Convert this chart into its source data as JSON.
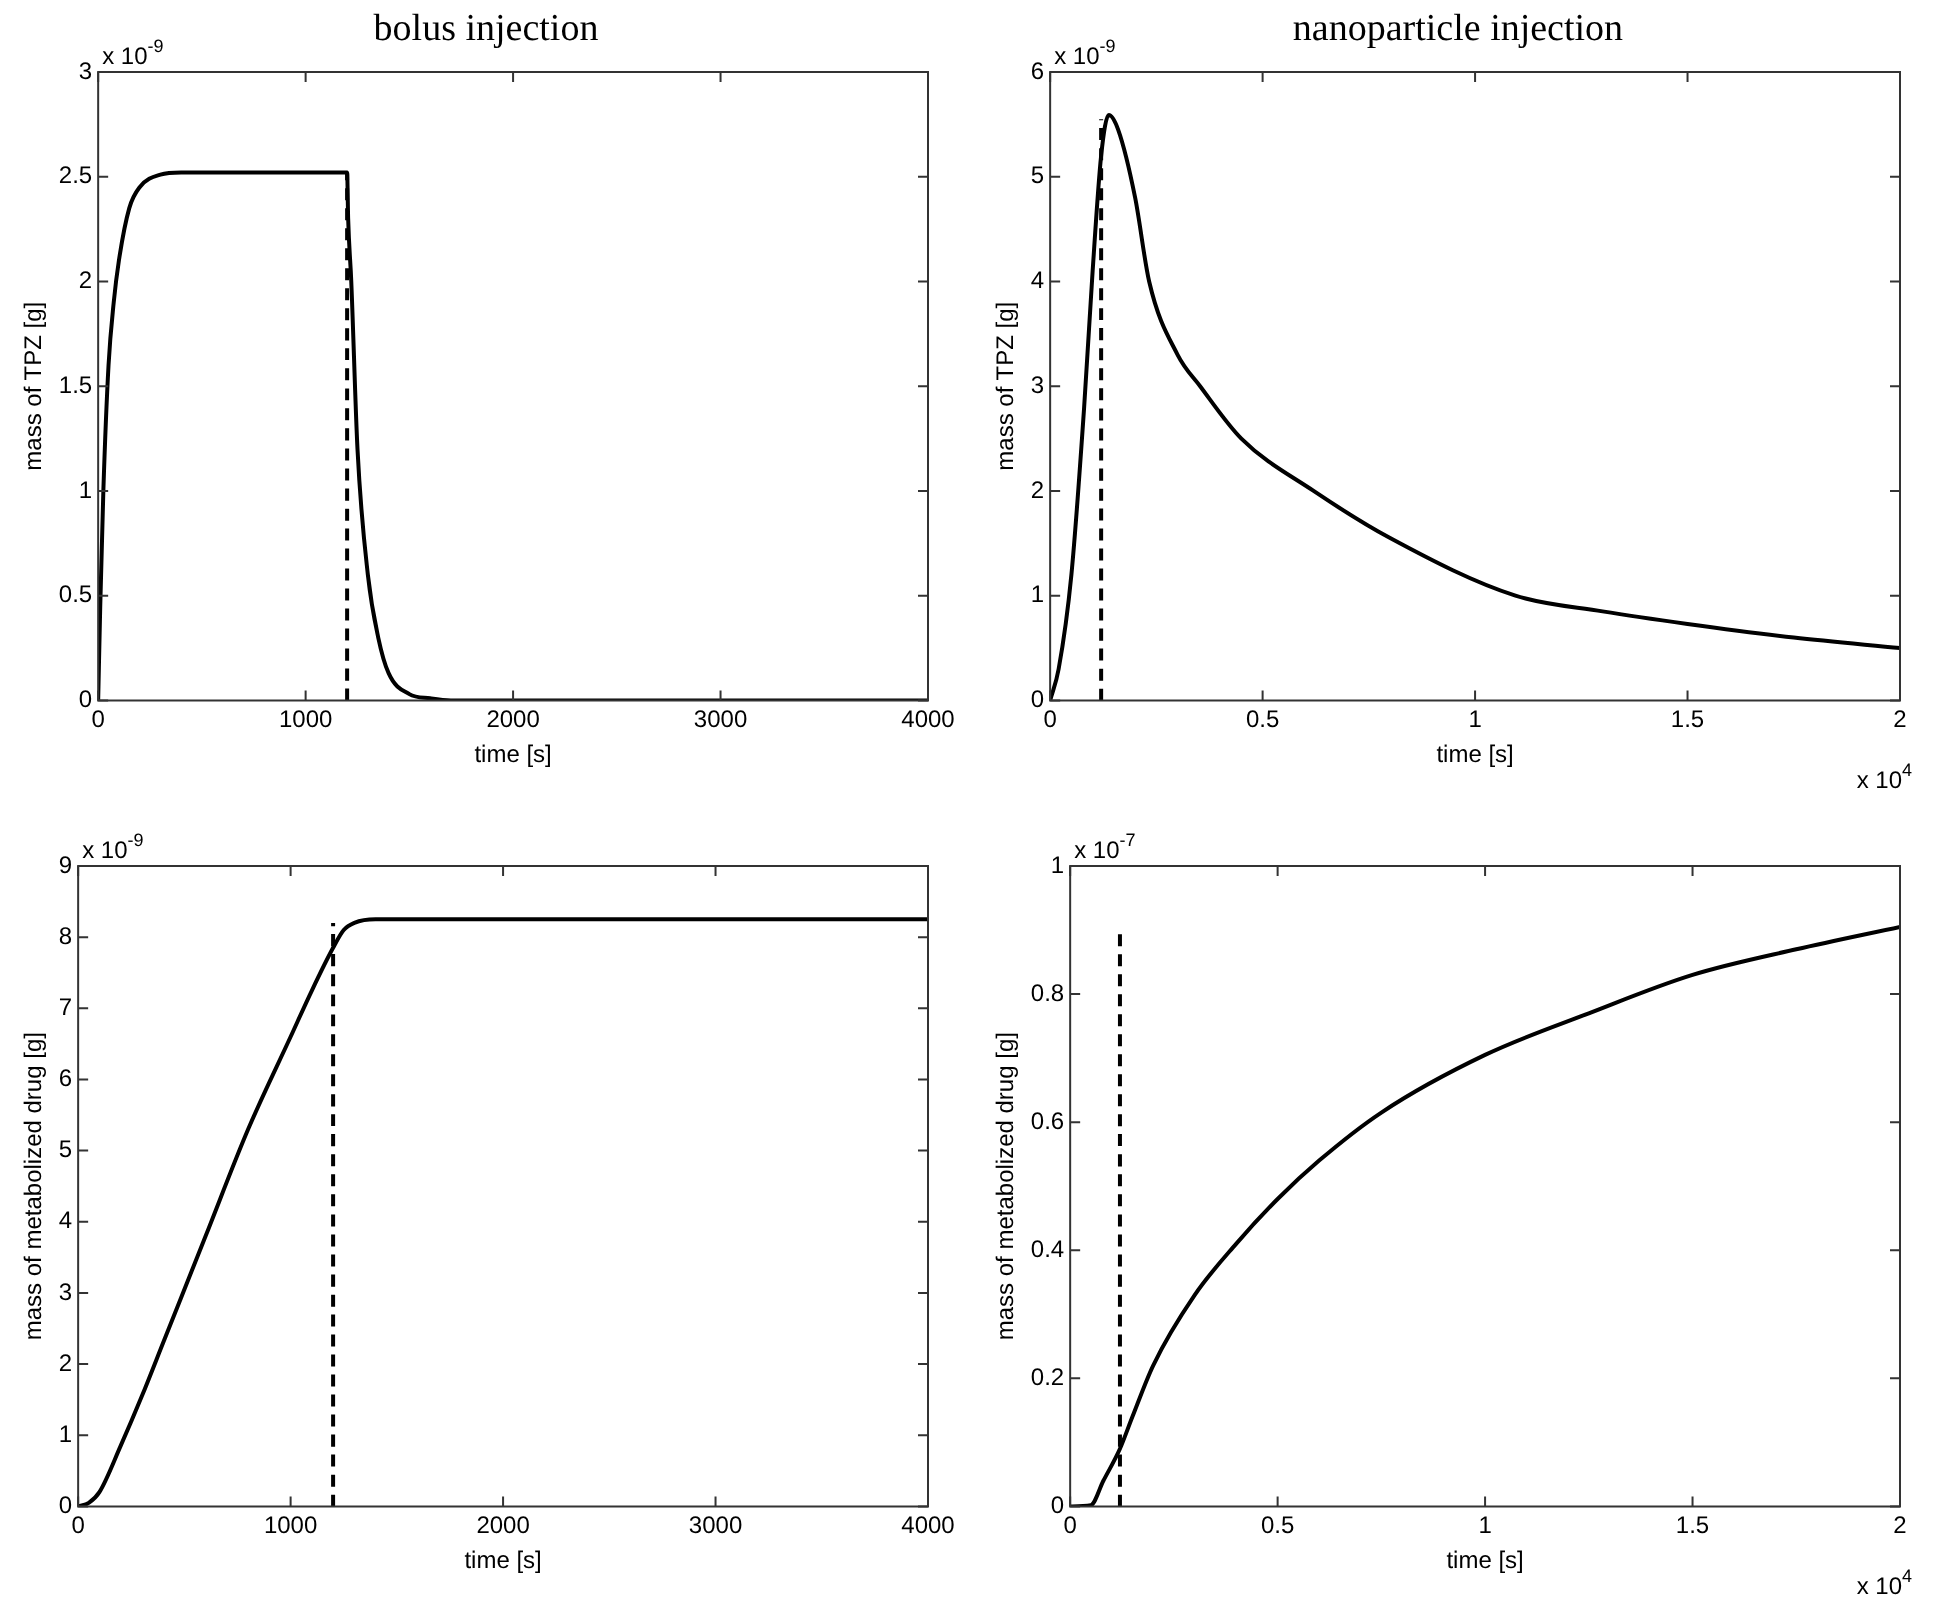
{
  "chart_data": [
    {
      "type": "line",
      "title": "bolus injection",
      "xlabel": "time [s]",
      "ylabel": "mass of TPZ [g]",
      "xlim": [
        0,
        4000
      ],
      "xticks": [
        0,
        1000,
        2000,
        3000,
        4000
      ],
      "ylim": [
        0,
        3
      ],
      "yticks": [
        0,
        0.5,
        1,
        1.5,
        2,
        2.5,
        3
      ],
      "grid": false,
      "legend": false,
      "marker": "none",
      "annotations": [
        "x 10$^{-9}$"
      ],
      "series": [
        {
          "color": "#000000",
          "line_style": "solid",
          "x": [
            0,
            10,
            25,
            50,
            75,
            100,
            150,
            200,
            300,
            400,
            1200,
            1205,
            1220,
            1250,
            1300,
            1350,
            1400,
            1500,
            1600,
            1700,
            4000
          ],
          "values": [
            0,
            0.45,
            1.0,
            1.6,
            1.9,
            2.1,
            2.35,
            2.45,
            2.51,
            2.52,
            2.52,
            2.3,
            2.0,
            1.2,
            0.6,
            0.3,
            0.13,
            0.03,
            0.01,
            0,
            0
          ]
        },
        {
          "color": "#000000",
          "line_style": "dashed",
          "x": [
            1200,
            1200
          ],
          "values": [
            0,
            2.52
          ]
        }
      ]
    },
    {
      "type": "line",
      "title": "nanoparticle injection",
      "xlabel": "time [s]",
      "ylabel": "mass of TPZ [g]",
      "xlim": [
        0,
        2
      ],
      "xticks": [
        0,
        0.5,
        1,
        1.5,
        2
      ],
      "ylim": [
        0,
        6
      ],
      "yticks": [
        0,
        1,
        2,
        3,
        4,
        5,
        6
      ],
      "grid": false,
      "legend": false,
      "marker": "none",
      "annotations": [
        "x 10$^{-9}$",
        "x 10$^{4}$"
      ],
      "series": [
        {
          "color": "#000000",
          "line_style": "solid",
          "x": [
            0,
            0.02,
            0.05,
            0.08,
            0.1,
            0.12,
            0.138,
            0.16,
            0.2,
            0.233,
            0.3,
            0.353,
            0.45,
            0.62,
            0.8,
            1.095,
            1.3,
            1.5,
            1.75,
            2
          ],
          "values": [
            0,
            0.3,
            1.2,
            2.8,
            4.1,
            5.2,
            5.59,
            5.45,
            4.8,
            4.0,
            3.3,
            3.0,
            2.5,
            2.0,
            1.55,
            1.0,
            0.85,
            0.73,
            0.6,
            0.5
          ]
        },
        {
          "color": "#000000",
          "line_style": "dashed",
          "x": [
            0.12,
            0.12
          ],
          "values": [
            0,
            5.55
          ]
        }
      ]
    },
    {
      "type": "line",
      "xlabel": "time [s]",
      "ylabel": "mass of metabolized drug [g]",
      "xlim": [
        0,
        4000
      ],
      "xticks": [
        0,
        1000,
        2000,
        3000,
        4000
      ],
      "ylim": [
        0,
        9
      ],
      "yticks": [
        0,
        1,
        2,
        3,
        4,
        5,
        6,
        7,
        8,
        9
      ],
      "grid": false,
      "legend": false,
      "marker": "none",
      "annotations": [
        "x 10$^{-9}$"
      ],
      "series": [
        {
          "color": "#000000",
          "line_style": "solid",
          "x": [
            0,
            50,
            100,
            200,
            300,
            400,
            600,
            800,
            1000,
            1100,
            1200,
            1250,
            1300,
            1400,
            4000
          ],
          "values": [
            0,
            0.05,
            0.2,
            0.85,
            1.55,
            2.3,
            3.8,
            5.3,
            6.6,
            7.25,
            7.85,
            8.1,
            8.2,
            8.25,
            8.25
          ]
        },
        {
          "color": "#000000",
          "line_style": "dashed",
          "x": [
            1200,
            1200
          ],
          "values": [
            0,
            8.2
          ]
        }
      ]
    },
    {
      "type": "line",
      "xlabel": "time [s]",
      "ylabel": "mass of metabolized drug [g]",
      "xlim": [
        0,
        2
      ],
      "xticks": [
        0,
        0.5,
        1,
        1.5,
        2
      ],
      "ylim": [
        0,
        1
      ],
      "yticks": [
        0,
        0.2,
        0.4,
        0.6,
        0.8,
        1
      ],
      "grid": false,
      "legend": false,
      "marker": "none",
      "annotations": [
        "x 10$^{-7}$",
        "x 10$^{4}$"
      ],
      "series": [
        {
          "color": "#000000",
          "line_style": "solid",
          "x": [
            0,
            0.05,
            0.08,
            0.12,
            0.15,
            0.2,
            0.3,
            0.4,
            0.5,
            0.6,
            0.75,
            1.0,
            1.25,
            1.5,
            1.75,
            2
          ],
          "values": [
            0,
            0.002,
            0.04,
            0.09,
            0.14,
            0.22,
            0.33,
            0.41,
            0.48,
            0.54,
            0.615,
            0.705,
            0.77,
            0.83,
            0.87,
            0.905
          ]
        },
        {
          "color": "#000000",
          "line_style": "dashed",
          "x": [
            0.12,
            0.12
          ],
          "values": [
            0,
            0.9
          ]
        }
      ]
    }
  ]
}
